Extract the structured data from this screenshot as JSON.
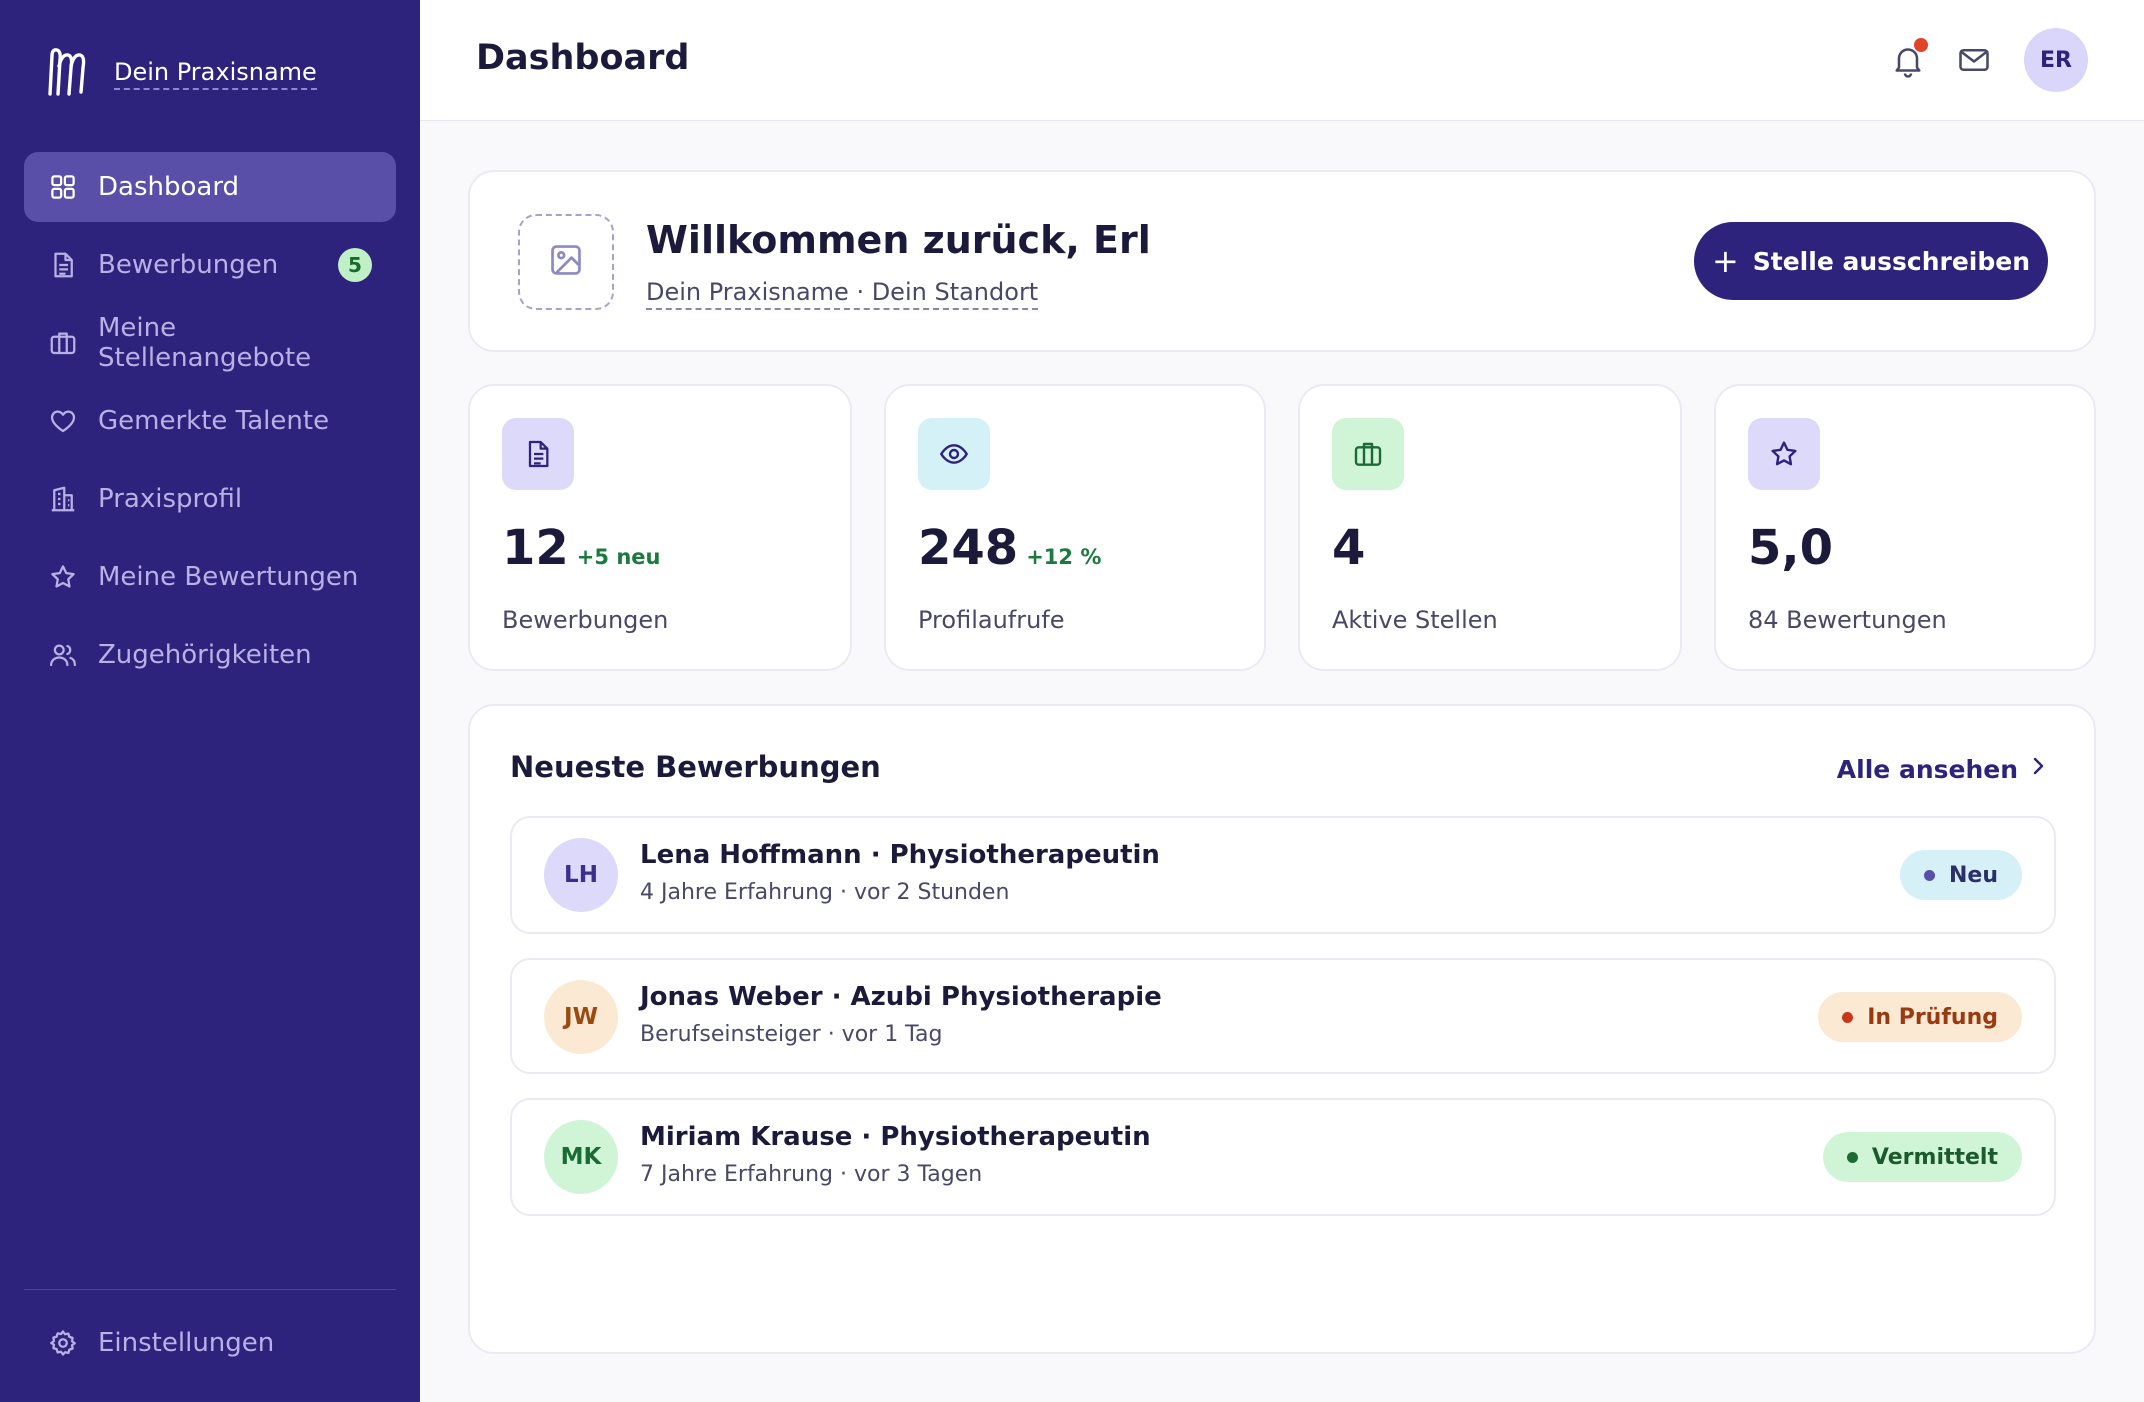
{
  "brand": {
    "name": "Dein Praxisname",
    "logo_icon": "hm-logo-icon"
  },
  "sidebar": {
    "items": [
      {
        "label": "Dashboard",
        "icon": "grid-icon",
        "active": true
      },
      {
        "label": "Bewerbungen",
        "icon": "document-icon",
        "badge": "5"
      },
      {
        "label": "Meine Stellenangebote",
        "icon": "briefcase-icon"
      },
      {
        "label": "Gemerkte Talente",
        "icon": "heart-icon"
      },
      {
        "label": "Praxisprofil",
        "icon": "building-icon"
      },
      {
        "label": "Meine Bewertungen",
        "icon": "star-icon"
      },
      {
        "label": "Zugehörigkeiten",
        "icon": "users-icon"
      }
    ],
    "settings_label": "Einstellungen"
  },
  "header": {
    "title": "Dashboard",
    "user_initials": "ER",
    "has_notification": true
  },
  "welcome": {
    "title": "Willkommen zurück, Erl",
    "subtitle": "Dein Praxisname · Dein Standort",
    "cta_label": "Stelle ausschreiben"
  },
  "stats": [
    {
      "value": "12",
      "delta": "+5 neu",
      "label": "Bewerbungen",
      "icon": "document-icon",
      "icon_bg": "#ddd9fb"
    },
    {
      "value": "248",
      "delta": "+12 %",
      "label": "Profilaufrufe",
      "icon": "eye-icon",
      "icon_bg": "#d3f1f7"
    },
    {
      "value": "4",
      "delta": "",
      "label": "Aktive Stellen",
      "icon": "briefcase-icon",
      "icon_bg": "#cff5d6"
    },
    {
      "value": "5,0",
      "delta": "",
      "label": "84 Bewertungen",
      "icon": "star-icon",
      "icon_bg": "#ddd9fb"
    }
  ],
  "recent": {
    "title": "Neueste Bewerbungen",
    "see_all": "Alle ansehen",
    "applications": [
      {
        "initials": "LH",
        "name": "Lena Hoffmann · Physiotherapeutin",
        "meta": "4 Jahre Erfahrung · vor 2 Stunden",
        "status": "Neu",
        "avatar_bg": "#ddd9fb",
        "avatar_fg": "#3a2e8e",
        "status_bg": "#d6f0f7",
        "status_fg": "#2a2f6a",
        "dot": "#5a4fa8"
      },
      {
        "initials": "JW",
        "name": "Jonas Weber · Azubi Physiotherapie",
        "meta": "Berufseinsteiger · vor 1 Tag",
        "status": "In Prüfung",
        "avatar_bg": "#fbe9d3",
        "avatar_fg": "#9a4b10",
        "status_bg": "#fbe9d3",
        "status_fg": "#9a3a10",
        "dot": "#c8361c"
      },
      {
        "initials": "MK",
        "name": "Miriam Krause · Physiotherapeutin",
        "meta": "7 Jahre Erfahrung · vor 3 Tagen",
        "status": "Vermittelt",
        "avatar_bg": "#cff5d6",
        "avatar_fg": "#1b6b34",
        "status_bg": "#cff5d6",
        "status_fg": "#1b5a2c",
        "dot": "#1b6b34"
      }
    ]
  }
}
